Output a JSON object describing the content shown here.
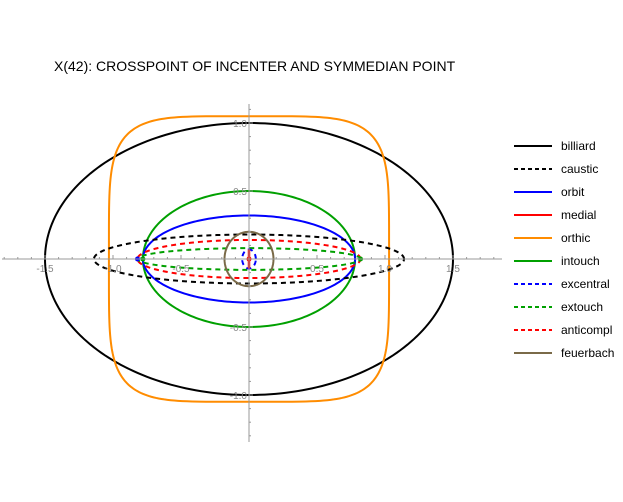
{
  "chart_data": {
    "type": "line",
    "title": "X(42): CROSSPOINT OF INCENTER AND SYMMEDIAN POINT",
    "xlabel": "",
    "ylabel": "",
    "xlim": [
      -1.65,
      1.65
    ],
    "ylim": [
      -1.15,
      1.15
    ],
    "grid": false,
    "legend_position": "right",
    "x_ticks": [
      {
        "value": -1.5,
        "label": "-1.5"
      },
      {
        "value": -1.0,
        "label": "-1.0"
      },
      {
        "value": -0.5,
        "label": "-0.5"
      },
      {
        "value": 0.5,
        "label": "0.5"
      },
      {
        "value": 1.0,
        "label": "1.0"
      },
      {
        "value": 1.5,
        "label": "1.5"
      }
    ],
    "y_ticks": [
      {
        "value": 1.0,
        "label": "1.0"
      },
      {
        "value": 0.5,
        "label": "0.5"
      },
      {
        "value": -0.5,
        "label": "-0.5"
      },
      {
        "value": -1.0,
        "label": "-1.0"
      }
    ],
    "series": [
      {
        "name": "billiard",
        "color": "#000000",
        "dashed": false,
        "shape": "ellipse",
        "cx": 0,
        "cy": 0,
        "a": 1.5,
        "b": 1.0
      },
      {
        "name": "caustic",
        "color": "#000000",
        "dashed": true,
        "shape": "ellipse",
        "cx": 0,
        "cy": 0,
        "a": 1.14,
        "b": 0.18
      },
      {
        "name": "orbit",
        "color": "#0000ff",
        "dashed": false,
        "shape": "ellipse",
        "cx": 0,
        "cy": 0,
        "a": 0.78,
        "b": 0.32
      },
      {
        "name": "medial",
        "color": "#ff0000",
        "dashed": false,
        "shape": "segment",
        "points": [
          [
            0,
            -0.07
          ],
          [
            0,
            0.07
          ]
        ]
      },
      {
        "name": "orthic",
        "color": "#ff8c00",
        "dashed": false,
        "shape": "superellipse",
        "cx": 0,
        "cy": 0,
        "a": 1.03,
        "b": 1.05,
        "n": 5
      },
      {
        "name": "intouch",
        "color": "#00a000",
        "dashed": false,
        "shape": "ellipse",
        "cx": 0,
        "cy": 0,
        "a": 0.78,
        "b": 0.5
      },
      {
        "name": "excentral",
        "color": "#0000ff",
        "dashed": true,
        "shape": "ellipse",
        "cx": 0,
        "cy": 0,
        "a": 0.05,
        "b": 0.07
      },
      {
        "name": "extouch",
        "color": "#00a000",
        "dashed": true,
        "shape": "ellipse",
        "cx": 0,
        "cy": 0,
        "a": 0.82,
        "b": 0.08
      },
      {
        "name": "anticompl",
        "color": "#ff0000",
        "dashed": true,
        "shape": "ellipse",
        "cx": 0,
        "cy": 0,
        "a": 0.82,
        "b": 0.14
      },
      {
        "name": "feuerbach",
        "color": "#7a6a48",
        "dashed": false,
        "shape": "ellipse",
        "cx": 0,
        "cy": 0,
        "a": 0.18,
        "b": 0.2
      }
    ],
    "points": [
      {
        "x": -0.78,
        "y": 0.0,
        "color": "#00a000"
      },
      {
        "x": 0.82,
        "y": 0.0,
        "color": "#00a000"
      },
      {
        "x": -0.82,
        "y": 0.0,
        "color": "#0000ff"
      },
      {
        "x": 0.0,
        "y": 0.0,
        "color": "#ff0000"
      }
    ]
  }
}
